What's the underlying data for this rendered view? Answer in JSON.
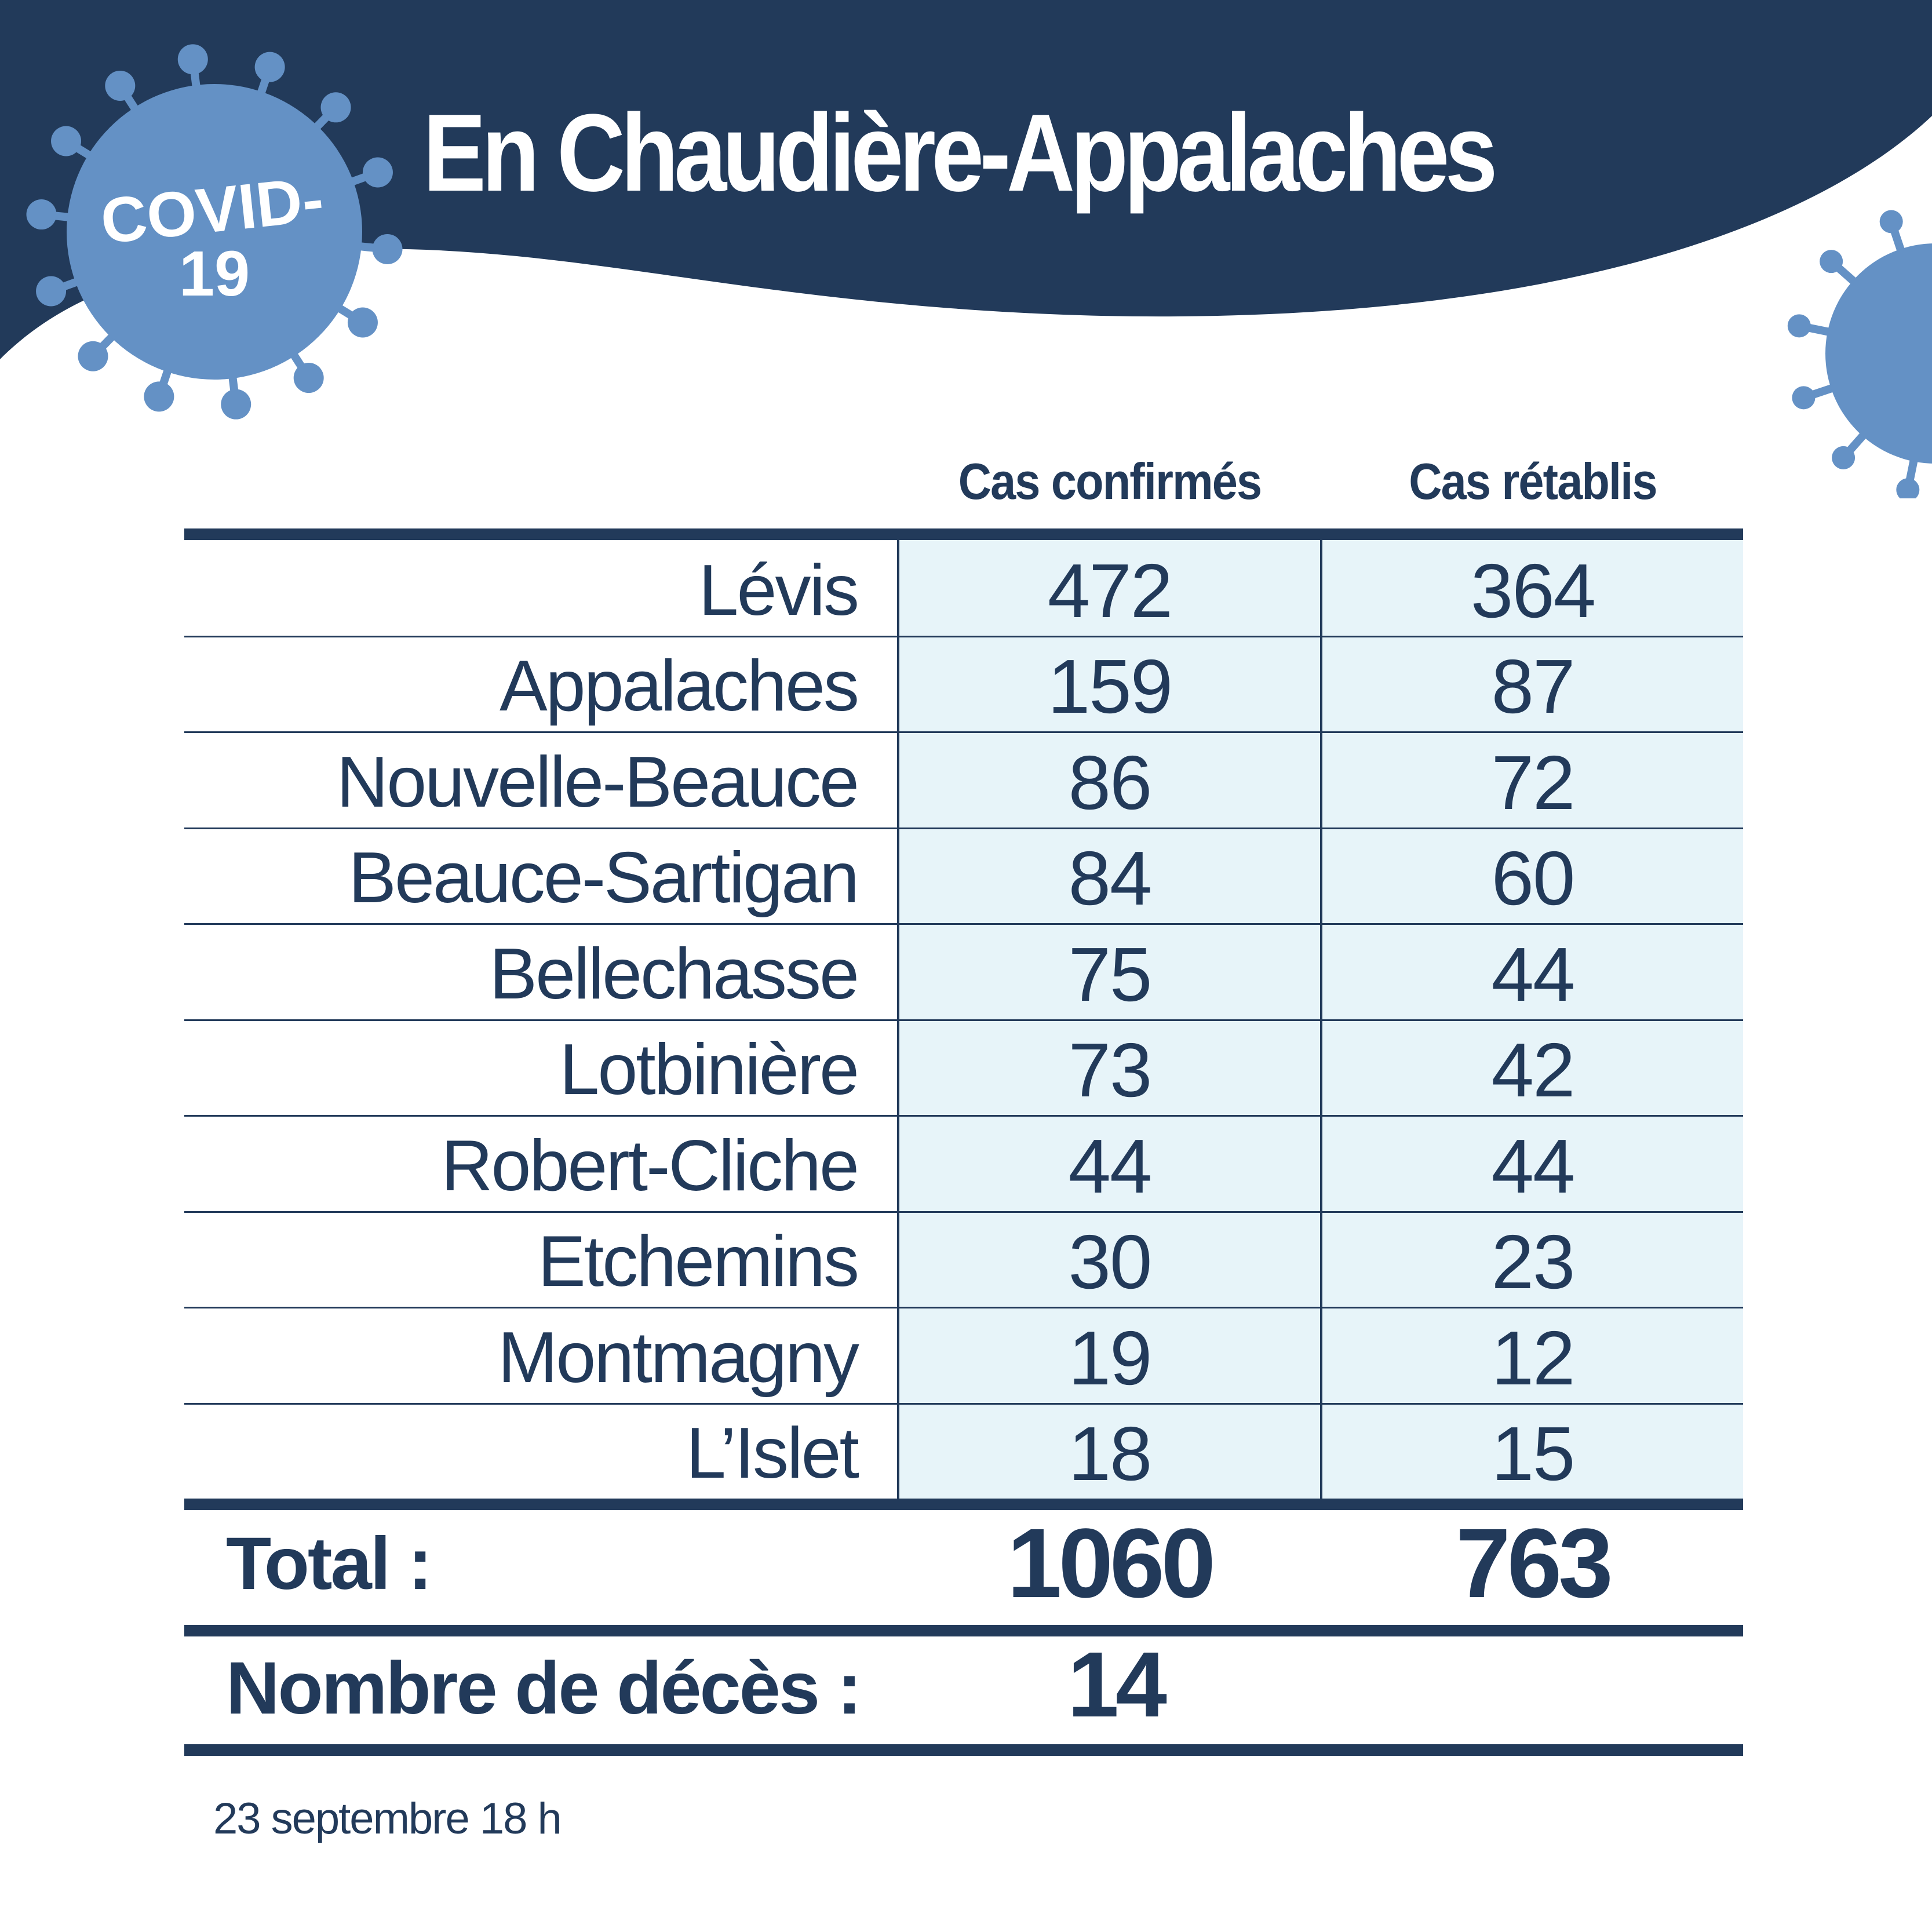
{
  "header": {
    "title": "En Chaudière-Appalaches",
    "badge_line1": "COVID-",
    "badge_line2": "19"
  },
  "table": {
    "columns": [
      "Cas confirmés",
      "Cas rétablis"
    ],
    "rows": [
      {
        "region": "Lévis",
        "confirmes": "472",
        "retablis": "364"
      },
      {
        "region": "Appalaches",
        "confirmes": "159",
        "retablis": "87"
      },
      {
        "region": "Nouvelle-Beauce",
        "confirmes": "86",
        "retablis": "72"
      },
      {
        "region": "Beauce-Sartigan",
        "confirmes": "84",
        "retablis": "60"
      },
      {
        "region": "Bellechasse",
        "confirmes": "75",
        "retablis": "44"
      },
      {
        "region": "Lotbinière",
        "confirmes": "73",
        "retablis": "42"
      },
      {
        "region": "Robert-Cliche",
        "confirmes": "44",
        "retablis": "44"
      },
      {
        "region": "Etchemins",
        "confirmes": "30",
        "retablis": "23"
      },
      {
        "region": "Montmagny",
        "confirmes": "19",
        "retablis": "12"
      },
      {
        "region": "L’Islet",
        "confirmes": "18",
        "retablis": "15"
      }
    ],
    "total_label": "Total :",
    "total_confirmes": "1060",
    "total_retablis": "763",
    "deaths_label": "Nombre de décès :",
    "deaths_value": "14"
  },
  "footnote": "23 septembre 18 h",
  "colors": {
    "navy": "#223a5a",
    "virus_blue": "#6491c5",
    "cell_tint": "#e7f4f9"
  }
}
